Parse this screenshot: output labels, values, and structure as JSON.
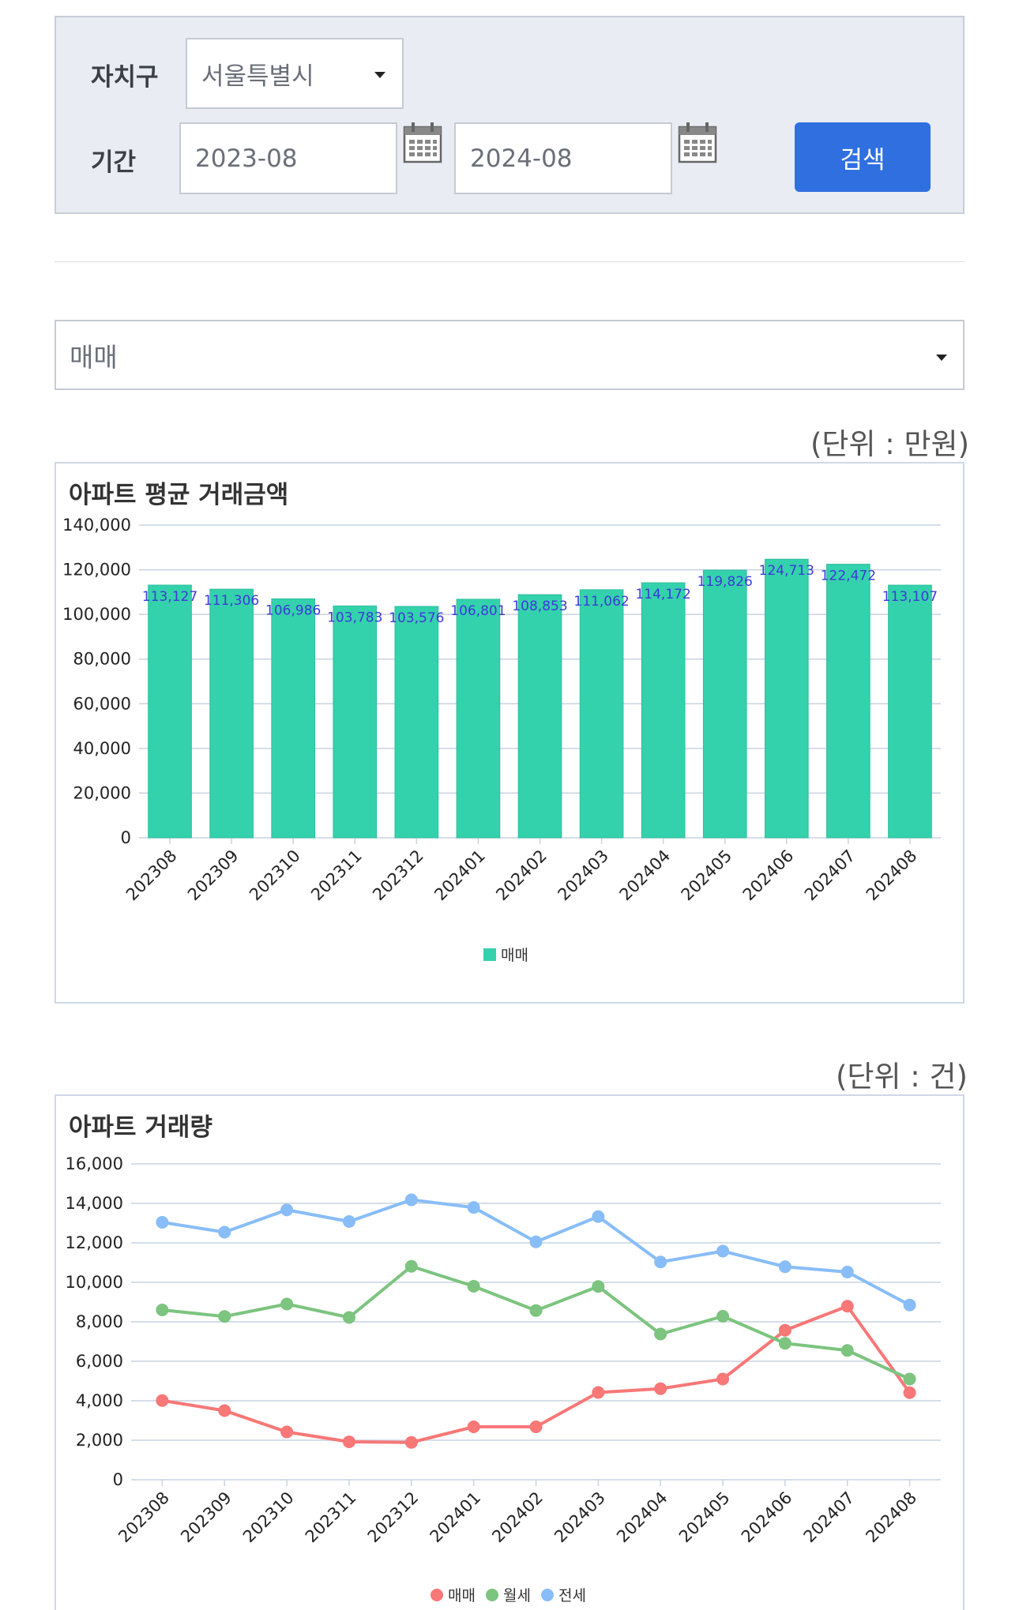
{
  "filters": {
    "district_label": "자치구",
    "district_value": "서울특별시",
    "period_label": "기간",
    "start_value": "2023-08",
    "end_value": "2024-08",
    "search_label": "검색"
  },
  "type_select": {
    "value": "매매"
  },
  "price_section": {
    "unit": "(단위 : 만원)",
    "title": "아파트 평균 거래금액"
  },
  "volume_section": {
    "unit": "(단위 : 건)",
    "title": "아파트 거래량"
  },
  "colors": {
    "bar": "#34d1ad",
    "sale": "#f87777",
    "monthly": "#7cc47f",
    "jeonse": "#88bdf7",
    "button": "#2f6fe0",
    "bar_label": "#3b3bd6"
  },
  "chart_data": [
    {
      "type": "bar",
      "title": "아파트 평균 거래금액",
      "categories": [
        "202308",
        "202309",
        "202310",
        "202311",
        "202312",
        "202401",
        "202402",
        "202403",
        "202404",
        "202405",
        "202406",
        "202407",
        "202408"
      ],
      "series": [
        {
          "name": "매매",
          "values": [
            113127,
            111306,
            106986,
            103783,
            103576,
            106801,
            108853,
            111062,
            114172,
            119826,
            124713,
            122472,
            113107
          ]
        }
      ],
      "ylim": [
        0,
        140000
      ],
      "yticks": [
        0,
        20000,
        40000,
        60000,
        80000,
        100000,
        120000,
        140000
      ],
      "legend": "bottom-center",
      "grid": true
    },
    {
      "type": "line",
      "title": "아파트 거래량",
      "categories": [
        "202308",
        "202309",
        "202310",
        "202311",
        "202312",
        "202401",
        "202402",
        "202403",
        "202404",
        "202405",
        "202406",
        "202407",
        "202408"
      ],
      "series": [
        {
          "name": "매매",
          "values": [
            4010,
            3500,
            2420,
            1920,
            1890,
            2680,
            2680,
            4420,
            4610,
            5100,
            7570,
            8790,
            4410
          ]
        },
        {
          "name": "월세",
          "values": [
            8600,
            8270,
            8900,
            8220,
            10810,
            9800,
            8570,
            9790,
            7380,
            8280,
            6910,
            6550,
            5100
          ]
        },
        {
          "name": "전세",
          "values": [
            13040,
            12540,
            13670,
            13080,
            14180,
            13790,
            12050,
            13330,
            11030,
            11580,
            10790,
            10520,
            8850
          ]
        }
      ],
      "ylim": [
        0,
        16000
      ],
      "yticks": [
        0,
        2000,
        4000,
        6000,
        8000,
        10000,
        12000,
        14000,
        16000
      ],
      "legend": "bottom-center",
      "grid": true
    }
  ]
}
